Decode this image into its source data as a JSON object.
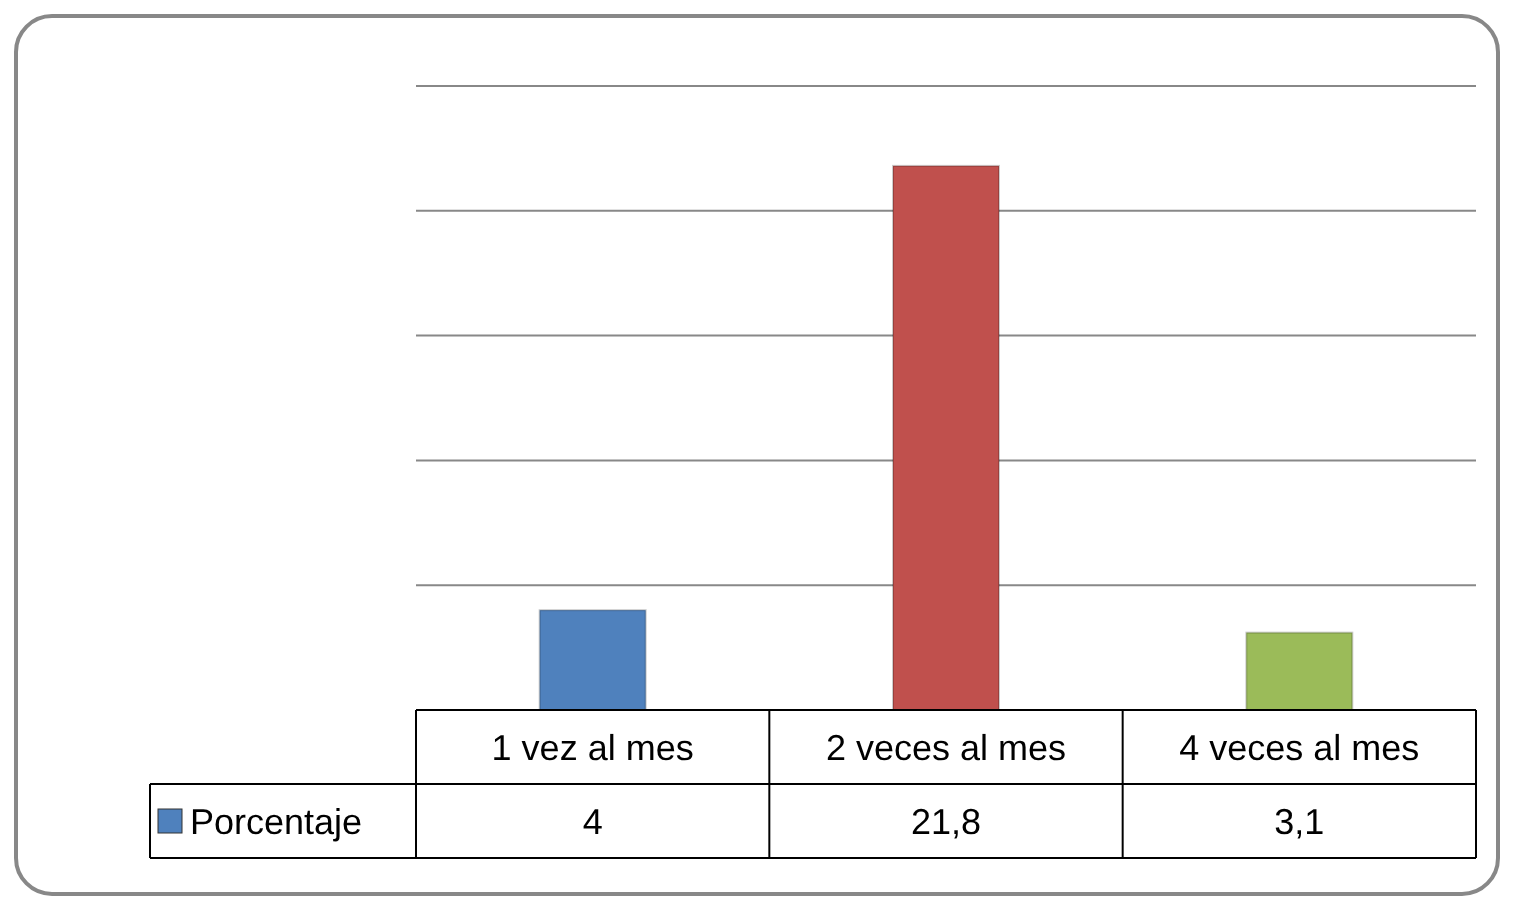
{
  "chart_data": {
    "type": "bar",
    "categories": [
      "1 vez al mes",
      "2 veces al mes",
      "4 veces al mes"
    ],
    "series": [
      {
        "name": "Porcentaje",
        "color": "#4f81bd",
        "colors": [
          "#4f81bd",
          "#c0504d",
          "#9bbb59"
        ],
        "values": [
          4,
          21.8,
          3.1
        ],
        "value_labels": [
          "4",
          "21,8",
          "3,1"
        ]
      }
    ],
    "ylim": [
      0,
      25
    ],
    "yticks": [
      {
        "value": 0,
        "label": null
      },
      {
        "value": 5,
        "label": null
      },
      {
        "value": 10,
        "label": null
      },
      {
        "value": 15,
        "label": null
      },
      {
        "value": 20,
        "label": null
      },
      {
        "value": 25,
        "label": null
      }
    ],
    "tick_labels": "x",
    "grid": "y",
    "legend": "bottom left"
  }
}
